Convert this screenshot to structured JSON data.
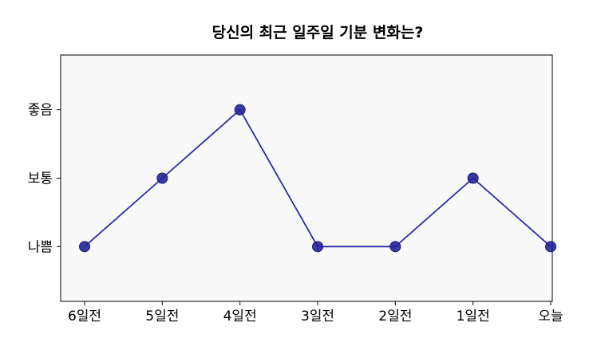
{
  "chart_data": {
    "type": "line",
    "title": "당신의 최근 일주일 기분 변화는?",
    "xlabel": "",
    "ylabel": "",
    "categories": [
      "6일전",
      "5일전",
      "4일전",
      "3일전",
      "2일전",
      "1일전",
      "오늘"
    ],
    "y_tick_labels": [
      "나쁨",
      "보통",
      "좋음"
    ],
    "y_tick_values": [
      1,
      2,
      3
    ],
    "ylim": [
      0.2,
      3.8
    ],
    "series": [
      {
        "values": [
          1,
          2,
          3,
          1,
          1,
          2,
          1
        ]
      }
    ],
    "grid": false,
    "colors": {
      "line": "#2b2ba8",
      "marker_fill": "#24249a",
      "plot_background": "#f9f9f9"
    }
  }
}
